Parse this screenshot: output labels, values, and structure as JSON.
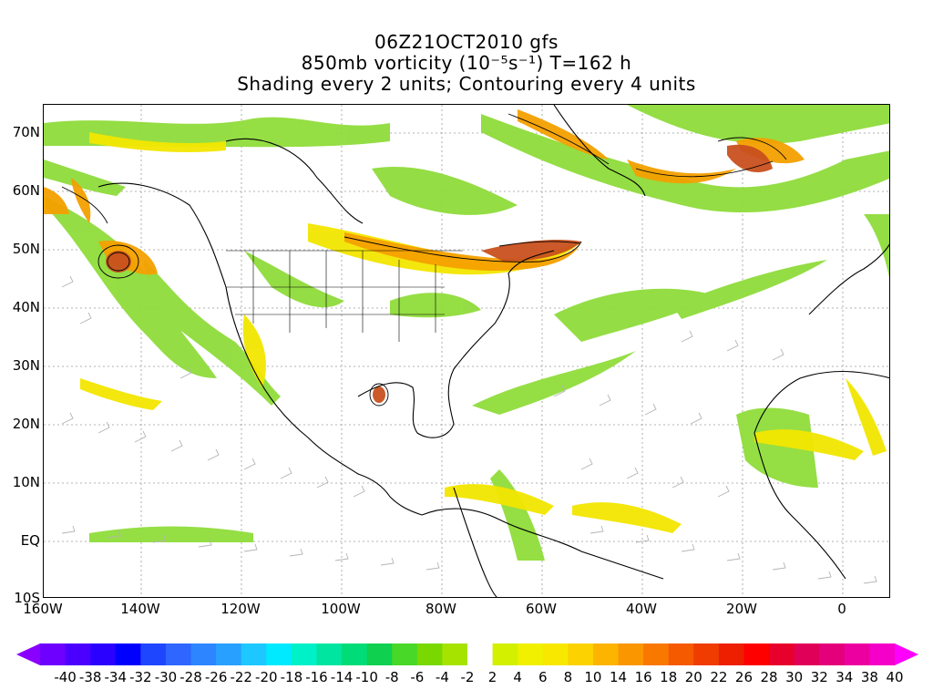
{
  "header": {
    "line1": "06Z21OCT2010 gfs",
    "line2": "850mb vorticity (10⁻⁵s⁻¹) T=162 h",
    "line3": "Shading every 2 units; Contouring every 4 units"
  },
  "map": {
    "lat_labels": [
      "70N",
      "60N",
      "50N",
      "40N",
      "30N",
      "20N",
      "10N",
      "EQ",
      "10S"
    ],
    "lon_labels": [
      "160W",
      "140W",
      "120W",
      "100W",
      "80W",
      "60W",
      "40W",
      "20W",
      "0"
    ],
    "lon_range": [
      -160,
      10
    ],
    "lat_range": [
      -10,
      75
    ]
  },
  "colorbar": {
    "labels": [
      "-40",
      "-38",
      "-34",
      "-32",
      "-30",
      "-28",
      "-26",
      "-22",
      "-20",
      "-18",
      "-16",
      "-14",
      "-10",
      "-8",
      "-6",
      "-4",
      "-2",
      "2",
      "4",
      "6",
      "8",
      "10",
      "14",
      "16",
      "18",
      "20",
      "22",
      "26",
      "28",
      "30",
      "32",
      "34",
      "38",
      "40"
    ],
    "colors": [
      "#8a00ff",
      "#6e00ff",
      "#4b00ff",
      "#2a00ff",
      "#0000ff",
      "#1f46ff",
      "#2e66ff",
      "#2d86ff",
      "#28a0ff",
      "#1cc8ff",
      "#00eaff",
      "#00f0c8",
      "#00e6a0",
      "#00dc78",
      "#10d050",
      "#48d828",
      "#78d800",
      "#a6e400",
      "#ffffff",
      "#d2f000",
      "#f0f000",
      "#f8e800",
      "#fcd200",
      "#fcb400",
      "#fa9600",
      "#f87800",
      "#f55a00",
      "#f03c00",
      "#ee1e00",
      "#ff0000",
      "#e8002d",
      "#e00058",
      "#e4007a",
      "#ec00a0",
      "#f400c8",
      "#ff00ff"
    ]
  }
}
